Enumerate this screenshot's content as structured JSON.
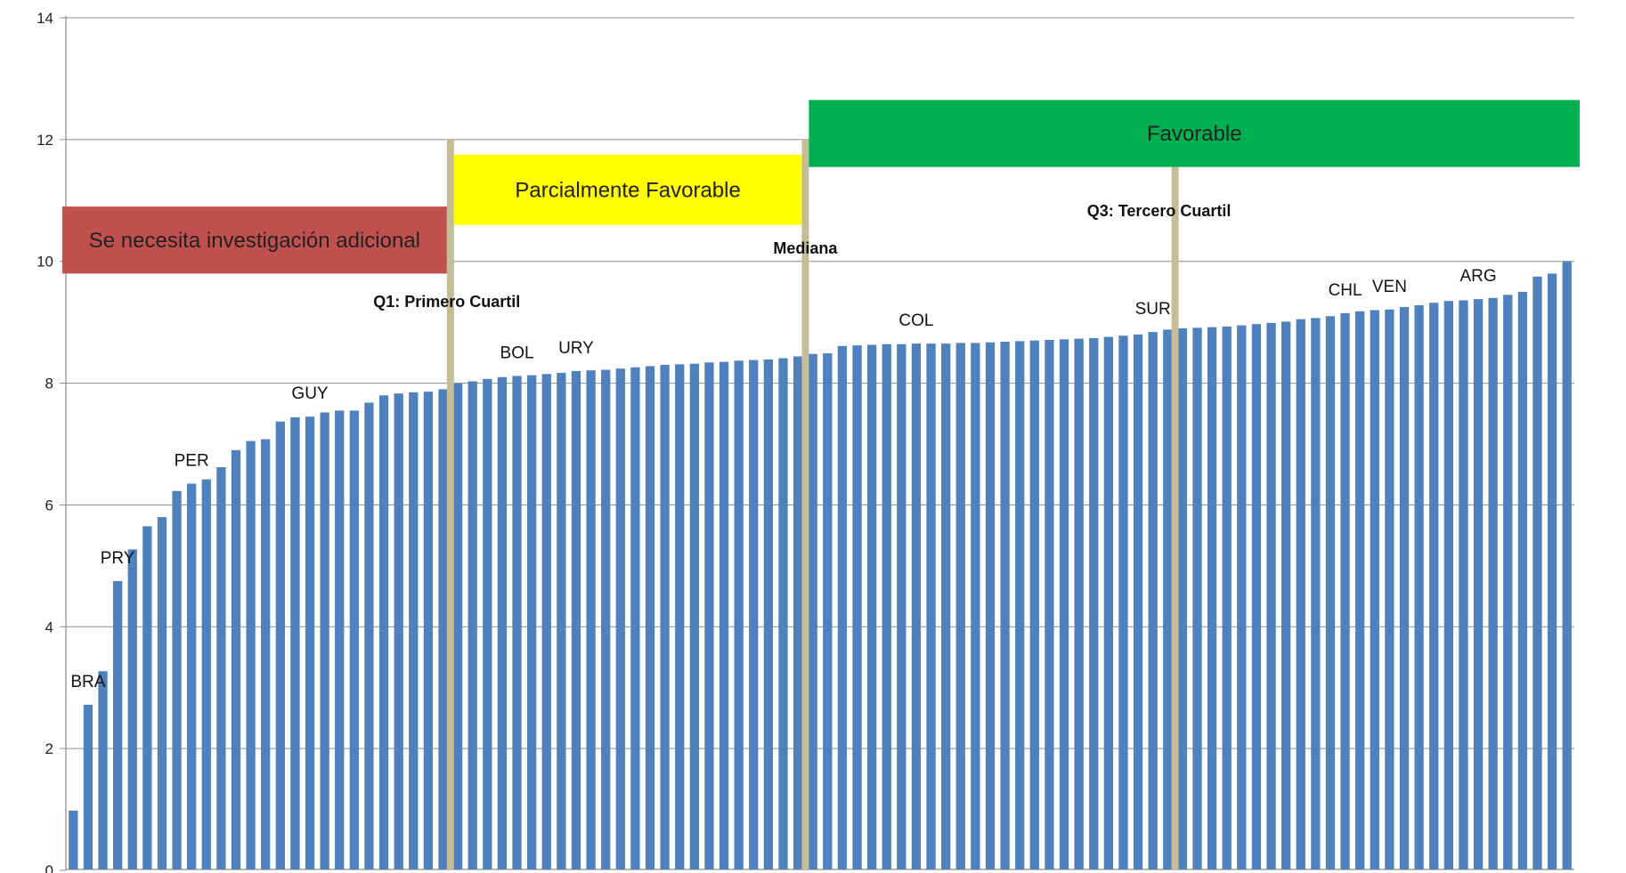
{
  "chart_data": {
    "type": "bar",
    "title": "",
    "xlabel": "",
    "ylabel": "",
    "ylim": [
      0,
      14
    ],
    "yticks": [
      0,
      2,
      4,
      6,
      8,
      10,
      12,
      14
    ],
    "grid": true,
    "legend": "none",
    "bar_color": "#4f81bd",
    "marker_line_color": "#c4bd97",
    "values": [
      0.98,
      2.72,
      3.27,
      4.75,
      5.27,
      5.65,
      5.8,
      6.23,
      6.35,
      6.42,
      6.62,
      6.9,
      7.05,
      7.08,
      7.37,
      7.44,
      7.45,
      7.52,
      7.55,
      7.55,
      7.68,
      7.8,
      7.83,
      7.85,
      7.86,
      7.9,
      8.0,
      8.03,
      8.07,
      8.1,
      8.12,
      8.13,
      8.15,
      8.17,
      8.2,
      8.21,
      8.22,
      8.24,
      8.26,
      8.28,
      8.3,
      8.31,
      8.32,
      8.34,
      8.35,
      8.37,
      8.38,
      8.39,
      8.41,
      8.44,
      8.48,
      8.49,
      8.61,
      8.62,
      8.63,
      8.64,
      8.64,
      8.65,
      8.65,
      8.65,
      8.66,
      8.66,
      8.67,
      8.68,
      8.69,
      8.7,
      8.71,
      8.72,
      8.73,
      8.74,
      8.76,
      8.78,
      8.8,
      8.84,
      8.88,
      8.9,
      8.91,
      8.92,
      8.93,
      8.95,
      8.97,
      8.99,
      9.01,
      9.05,
      9.07,
      9.1,
      9.15,
      9.18,
      9.2,
      9.21,
      9.25,
      9.28,
      9.32,
      9.35,
      9.36,
      9.38,
      9.4,
      9.45,
      9.5,
      9.75,
      9.8,
      10.0
    ],
    "country_labels": [
      {
        "label": "BRA",
        "index": 1
      },
      {
        "label": "PRY",
        "index": 3
      },
      {
        "label": "PER",
        "index": 8
      },
      {
        "label": "GUY",
        "index": 16
      },
      {
        "label": "BOL",
        "index": 30
      },
      {
        "label": "URY",
        "index": 34
      },
      {
        "label": "COL",
        "index": 57
      },
      {
        "label": "SUR",
        "index": 73
      },
      {
        "label": "CHL",
        "index": 86
      },
      {
        "label": "VEN",
        "index": 89
      },
      {
        "label": "ARG",
        "index": 95
      }
    ],
    "markers": [
      {
        "label": "Q1: Primero Cuartil",
        "after_index": 25,
        "top": 12
      },
      {
        "label": "Mediana",
        "after_index": 49,
        "top": 12
      },
      {
        "label": "Q3: Tercero Cuartil",
        "after_index": 74,
        "top": 11.55
      }
    ],
    "bands": [
      {
        "label": "Se necesita investigación adicional",
        "color": "#c0504d",
        "y_low": 9.8,
        "y_high": 10.9,
        "from": "start",
        "to": 25
      },
      {
        "label": "Parcialmente Favorable",
        "color": "#ffff00",
        "y_low": 10.6,
        "y_high": 11.75,
        "from": 25,
        "to": 49
      },
      {
        "label": "Favorable",
        "color": "#00b050",
        "y_low": 11.55,
        "y_high": 12.65,
        "from": 49,
        "to": "end"
      }
    ]
  }
}
